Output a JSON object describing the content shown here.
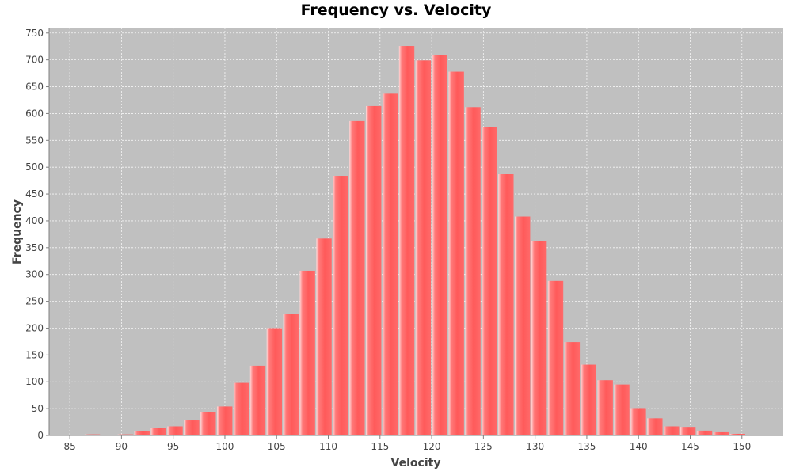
{
  "chart_data": {
    "type": "bar",
    "title": "Frequency vs. Velocity",
    "xlabel": "Velocity",
    "ylabel": "Frequency",
    "xlim": [
      83,
      154
    ],
    "ylim": [
      0,
      760
    ],
    "bin_width": 1.6,
    "x_ticks": [
      85,
      90,
      95,
      100,
      105,
      110,
      115,
      120,
      125,
      130,
      135,
      140,
      145,
      150
    ],
    "y_ticks": [
      0,
      50,
      100,
      150,
      200,
      250,
      300,
      350,
      400,
      450,
      500,
      550,
      600,
      650,
      700,
      750
    ],
    "bins_start": [
      86.4,
      88.0,
      89.6,
      91.2,
      92.8,
      94.4,
      96.0,
      97.6,
      99.2,
      100.8,
      102.4,
      104.0,
      105.6,
      107.2,
      108.8,
      110.4,
      112.0,
      113.6,
      115.2,
      116.8,
      118.4,
      120.0,
      121.6,
      123.2,
      124.8,
      126.4,
      128.0,
      129.6,
      131.2,
      132.8,
      134.4,
      136.0,
      137.6,
      139.2,
      140.8,
      142.4,
      144.0,
      145.6,
      147.2,
      148.8,
      150.4
    ],
    "values": [
      2,
      1,
      2,
      8,
      14,
      17,
      28,
      43,
      54,
      98,
      130,
      200,
      226,
      307,
      367,
      484,
      586,
      614,
      637,
      726,
      699,
      709,
      678,
      612,
      575,
      487,
      408,
      363,
      288,
      174,
      132,
      103,
      95,
      51,
      32,
      17,
      16,
      9,
      6,
      3,
      0
    ],
    "grid": true,
    "legend": "none",
    "colors": {
      "bar": "#ff5555",
      "plot_background": "#c0c0c0",
      "grid": "#ffffff"
    }
  }
}
